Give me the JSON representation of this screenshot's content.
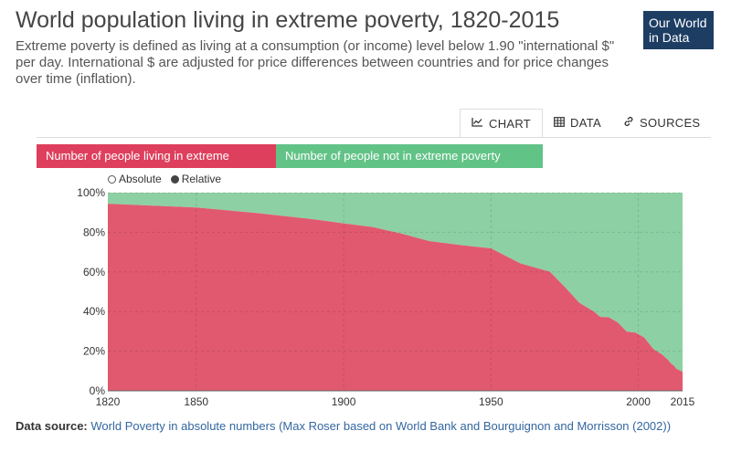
{
  "header": {
    "title": "World population living in extreme poverty, 1820-2015",
    "subtitle": "Extreme poverty is defined as living at a consumption (or income) level below 1.90 \"international $\" per day. International $ are adjusted for price differences between countries and for price changes over time (inflation).",
    "logo_line1": "Our World",
    "logo_line2": "in Data"
  },
  "tabs": [
    {
      "label": "CHART",
      "icon": "chart-line-icon",
      "active": true
    },
    {
      "label": "DATA",
      "icon": "table-icon",
      "active": false
    },
    {
      "label": "SOURCES",
      "icon": "link-icon",
      "active": false
    }
  ],
  "legend": {
    "poverty": "Number of people living in extreme poverty",
    "not_poverty": "Number of people not in extreme poverty"
  },
  "mode": {
    "absolute": "Absolute",
    "relative": "Relative",
    "selected": "Relative"
  },
  "source": {
    "label": "Data source:",
    "text": "World Poverty in absolute numbers (Max Roser based on World Bank and Bourguignon and Morrisson (2002))"
  },
  "colors": {
    "poverty": "#de3f5c",
    "not_poverty": "#62c387",
    "poverty_area": "#e1596e",
    "not_poverty_area": "#8dd0a3"
  },
  "chart_data": {
    "type": "area",
    "stacked": true,
    "normalized": true,
    "x": [
      1820,
      1850,
      1870,
      1890,
      1900,
      1910,
      1920,
      1929,
      1940,
      1950,
      1960,
      1970,
      1975,
      1980,
      1985,
      1987,
      1990,
      1993,
      1996,
      1999,
      2002,
      2005,
      2008,
      2010,
      2011,
      2012,
      2013,
      2015
    ],
    "series": [
      {
        "name": "Number of people living in extreme poverty",
        "values": [
          94.4,
          92.5,
          89.8,
          86.5,
          84.5,
          82.6,
          79.2,
          75.6,
          73.5,
          71.9,
          64.3,
          60.1,
          52.5,
          44.4,
          39.9,
          37.3,
          37.1,
          34.5,
          29.9,
          29.4,
          26.9,
          21.2,
          18.4,
          15.7,
          13.9,
          12.8,
          11.0,
          9.6
        ]
      },
      {
        "name": "Number of people not in extreme poverty",
        "values": [
          5.6,
          7.5,
          10.2,
          13.5,
          15.5,
          17.4,
          20.8,
          24.4,
          26.5,
          28.1,
          35.7,
          39.9,
          47.5,
          55.6,
          60.1,
          62.7,
          62.9,
          65.5,
          70.1,
          70.6,
          73.1,
          78.8,
          81.6,
          84.3,
          86.1,
          87.2,
          89.0,
          90.4
        ]
      }
    ],
    "xticks": [
      "1820",
      "1850",
      "1900",
      "1950",
      "2000",
      "2015"
    ],
    "yticks": [
      "0%",
      "20%",
      "40%",
      "60%",
      "80%",
      "100%"
    ],
    "xlim": [
      1820,
      2015
    ],
    "ylim": [
      0,
      100
    ],
    "grid": true
  }
}
